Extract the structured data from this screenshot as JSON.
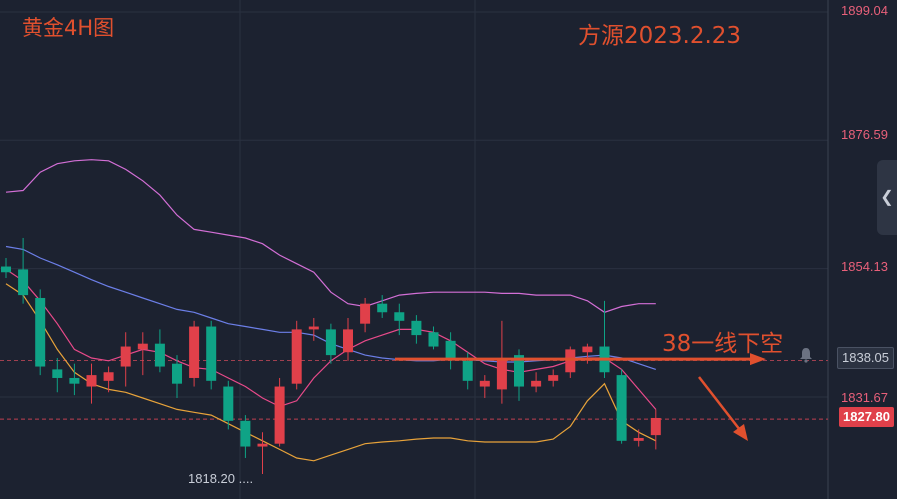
{
  "title": "黄金4H图",
  "date_text": "方源2023.2.23",
  "signal_text": "38一线下空",
  "colors": {
    "background": "#1c2230",
    "bull": "#e0404a",
    "bear": "#0fa386",
    "annotation": "#e0502e",
    "boll_band": "#d36fd6",
    "ma_blue": "#6c7fe8",
    "ma_pink": "#e84a8a",
    "ma_orange": "#e8a33a",
    "axis_text": "#e8607a"
  },
  "icons": {
    "alert": "bell-icon",
    "panel_toggle": "chevron-left-icon"
  },
  "chart_data": {
    "type": "candlestick",
    "symbol_label": "黄金4H图",
    "y_ticks": [
      1899.04,
      1876.59,
      1854.13,
      1831.67
    ],
    "ylim": [
      1811.5,
      1900.0
    ],
    "current_price": "1827.80",
    "alert_price": "1838.05",
    "low_label": "1818.20",
    "levels": {
      "current": 1827.8,
      "alert": 1838.05
    },
    "short_entry": 1838.3,
    "candles": [
      {
        "o": 1854.5,
        "h": 1856.0,
        "l": 1852.5,
        "c": 1853.5
      },
      {
        "o": 1854.0,
        "h": 1859.5,
        "l": 1848.0,
        "c": 1849.5
      },
      {
        "o": 1849.0,
        "h": 1850.5,
        "l": 1835.5,
        "c": 1837.0
      },
      {
        "o": 1836.5,
        "h": 1838.5,
        "l": 1832.5,
        "c": 1835.0
      },
      {
        "o": 1835.0,
        "h": 1837.5,
        "l": 1832.0,
        "c": 1834.0
      },
      {
        "o": 1833.5,
        "h": 1837.5,
        "l": 1830.5,
        "c": 1835.5
      },
      {
        "o": 1834.5,
        "h": 1837.0,
        "l": 1832.5,
        "c": 1836.0
      },
      {
        "o": 1837.0,
        "h": 1843.0,
        "l": 1833.5,
        "c": 1840.5
      },
      {
        "o": 1840.0,
        "h": 1843.0,
        "l": 1835.5,
        "c": 1841.0
      },
      {
        "o": 1841.0,
        "h": 1843.5,
        "l": 1836.0,
        "c": 1837.0
      },
      {
        "o": 1837.5,
        "h": 1839.0,
        "l": 1831.5,
        "c": 1834.0
      },
      {
        "o": 1835.0,
        "h": 1845.0,
        "l": 1833.5,
        "c": 1844.0
      },
      {
        "o": 1844.0,
        "h": 1845.0,
        "l": 1833.0,
        "c": 1834.5
      },
      {
        "o": 1833.5,
        "h": 1834.5,
        "l": 1826.0,
        "c": 1827.5
      },
      {
        "o": 1827.5,
        "h": 1828.5,
        "l": 1821.0,
        "c": 1823.0
      },
      {
        "o": 1823.0,
        "h": 1825.5,
        "l": 1818.2,
        "c": 1823.5
      },
      {
        "o": 1823.5,
        "h": 1835.0,
        "l": 1823.0,
        "c": 1833.5
      },
      {
        "o": 1834.0,
        "h": 1845.0,
        "l": 1833.0,
        "c": 1843.5
      },
      {
        "o": 1843.5,
        "h": 1845.5,
        "l": 1841.5,
        "c": 1844.0
      },
      {
        "o": 1843.5,
        "h": 1844.5,
        "l": 1837.5,
        "c": 1839.0
      },
      {
        "o": 1839.5,
        "h": 1845.5,
        "l": 1838.0,
        "c": 1843.5
      },
      {
        "o": 1844.5,
        "h": 1849.0,
        "l": 1843.0,
        "c": 1848.0
      },
      {
        "o": 1848.0,
        "h": 1849.5,
        "l": 1845.5,
        "c": 1846.5
      },
      {
        "o": 1846.5,
        "h": 1848.0,
        "l": 1842.5,
        "c": 1845.0
      },
      {
        "o": 1845.0,
        "h": 1846.0,
        "l": 1841.0,
        "c": 1842.5
      },
      {
        "o": 1843.0,
        "h": 1844.0,
        "l": 1840.0,
        "c": 1840.5
      },
      {
        "o": 1841.5,
        "h": 1843.0,
        "l": 1836.5,
        "c": 1838.5
      },
      {
        "o": 1838.0,
        "h": 1839.5,
        "l": 1833.0,
        "c": 1834.5
      },
      {
        "o": 1833.5,
        "h": 1835.5,
        "l": 1831.5,
        "c": 1834.5
      },
      {
        "o": 1833.0,
        "h": 1845.0,
        "l": 1830.5,
        "c": 1838.5
      },
      {
        "o": 1839.0,
        "h": 1840.0,
        "l": 1831.0,
        "c": 1833.5
      },
      {
        "o": 1833.5,
        "h": 1836.0,
        "l": 1832.5,
        "c": 1834.5
      },
      {
        "o": 1834.5,
        "h": 1836.5,
        "l": 1833.5,
        "c": 1835.5
      },
      {
        "o": 1836.0,
        "h": 1840.5,
        "l": 1835.0,
        "c": 1840.0
      },
      {
        "o": 1839.5,
        "h": 1841.0,
        "l": 1837.5,
        "c": 1840.5
      },
      {
        "o": 1840.5,
        "h": 1848.5,
        "l": 1835.0,
        "c": 1836.0
      },
      {
        "o": 1835.5,
        "h": 1836.5,
        "l": 1823.5,
        "c": 1824.0
      },
      {
        "o": 1824.0,
        "h": 1826.0,
        "l": 1823.0,
        "c": 1824.5
      },
      {
        "o": 1825.0,
        "h": 1829.5,
        "l": 1822.5,
        "c": 1828.0
      }
    ],
    "boll_upper": [
      1867.5,
      1867.8,
      1871.0,
      1872.5,
      1873.0,
      1873.2,
      1873.0,
      1871.5,
      1869.5,
      1867.0,
      1863.5,
      1861.0,
      1860.5,
      1860.0,
      1859.5,
      1858.5,
      1856.5,
      1855.0,
      1853.5,
      1850.0,
      1848.0,
      1847.5,
      1848.5,
      1849.5,
      1849.8,
      1850.0,
      1850.0,
      1850.0,
      1850.0,
      1849.8,
      1849.8,
      1849.5,
      1849.5,
      1849.5,
      1848.5,
      1846.5,
      1847.5,
      1848.0,
      1848.0
    ],
    "ma_blue": [
      1858.0,
      1857.5,
      1856.0,
      1854.8,
      1853.5,
      1852.2,
      1851.0,
      1850.0,
      1849.0,
      1848.0,
      1847.0,
      1846.5,
      1845.5,
      1844.5,
      1844.0,
      1843.5,
      1843.0,
      1843.0,
      1842.5,
      1841.0,
      1840.0,
      1839.0,
      1838.5,
      1838.2,
      1838.0,
      1838.0,
      1838.3,
      1838.2,
      1838.0,
      1837.8,
      1837.8,
      1838.0,
      1838.2,
      1838.5,
      1838.8,
      1839.0,
      1838.5,
      1837.5,
      1836.5
    ],
    "ma_pink": [
      1854.0,
      1852.0,
      1848.5,
      1844.5,
      1840.0,
      1838.5,
      1838.0,
      1839.0,
      1840.0,
      1839.5,
      1838.0,
      1836.8,
      1836.5,
      1835.0,
      1833.5,
      1831.5,
      1830.0,
      1831.0,
      1835.0,
      1838.0,
      1840.0,
      1841.5,
      1842.5,
      1843.5,
      1843.5,
      1843.0,
      1841.5,
      1839.5,
      1837.5,
      1836.5,
      1836.0,
      1836.5,
      1837.0,
      1838.0,
      1838.5,
      1838.5,
      1836.5,
      1833.0,
      1829.5
    ],
    "ma_orange": [
      1851.5,
      1849.5,
      1845.0,
      1840.0,
      1836.0,
      1834.0,
      1833.0,
      1832.5,
      1831.5,
      1830.5,
      1829.5,
      1829.0,
      1828.5,
      1827.0,
      1825.5,
      1824.0,
      1822.5,
      1821.0,
      1820.5,
      1821.5,
      1822.5,
      1823.5,
      1823.8,
      1824.0,
      1824.3,
      1824.5,
      1824.5,
      1824.0,
      1823.8,
      1823.8,
      1823.8,
      1823.8,
      1824.3,
      1826.5,
      1831.0,
      1834.0,
      1827.5,
      1825.5,
      1824.0
    ]
  }
}
